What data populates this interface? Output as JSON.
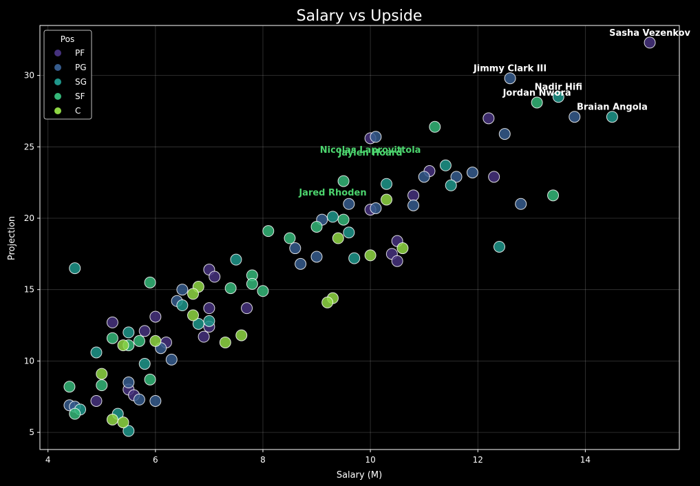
{
  "chart_data": {
    "type": "scatter",
    "title": "Salary vs Upside",
    "xlabel": "Salary (M)",
    "ylabel": "Projection",
    "xlim": [
      3.85,
      15.75
    ],
    "ylim": [
      3.8,
      33.5
    ],
    "xticks": [
      4,
      6,
      8,
      10,
      12,
      14
    ],
    "yticks": [
      5,
      10,
      15,
      20,
      25,
      30
    ],
    "grid": true,
    "legend": {
      "title": "Pos",
      "placement": "top-left",
      "entries": [
        {
          "label": "PF",
          "color": "#46327e"
        },
        {
          "label": "PG",
          "color": "#365c8d"
        },
        {
          "label": "SG",
          "color": "#1f968b"
        },
        {
          "label": "SF",
          "color": "#35b779"
        },
        {
          "label": "C",
          "color": "#8fd744"
        }
      ]
    },
    "series": [
      {
        "name": "PF",
        "color": "#46327e",
        "points": [
          [
            15.2,
            32.3
          ],
          [
            12.2,
            27.0
          ],
          [
            12.3,
            22.9
          ],
          [
            11.1,
            23.3
          ],
          [
            10.8,
            21.6
          ],
          [
            10.0,
            25.6
          ],
          [
            10.0,
            20.6
          ],
          [
            10.5,
            18.4
          ],
          [
            10.4,
            17.5
          ],
          [
            10.5,
            17.0
          ],
          [
            7.0,
            16.4
          ],
          [
            7.1,
            15.9
          ],
          [
            7.0,
            13.7
          ],
          [
            7.7,
            13.7
          ],
          [
            7.0,
            12.4
          ],
          [
            6.9,
            11.7
          ],
          [
            6.2,
            11.3
          ],
          [
            6.0,
            13.1
          ],
          [
            5.8,
            12.1
          ],
          [
            5.2,
            12.7
          ],
          [
            5.5,
            8.0
          ],
          [
            5.6,
            7.6
          ],
          [
            4.9,
            7.2
          ]
        ]
      },
      {
        "name": "PG",
        "color": "#365c8d",
        "points": [
          [
            12.6,
            29.8
          ],
          [
            13.8,
            27.1
          ],
          [
            12.5,
            25.9
          ],
          [
            11.9,
            23.2
          ],
          [
            11.6,
            22.9
          ],
          [
            11.0,
            22.9
          ],
          [
            12.8,
            21.0
          ],
          [
            10.8,
            20.9
          ],
          [
            10.1,
            25.7
          ],
          [
            10.1,
            20.7
          ],
          [
            9.6,
            21.0
          ],
          [
            9.1,
            19.9
          ],
          [
            8.6,
            17.9
          ],
          [
            8.7,
            16.8
          ],
          [
            9.0,
            17.3
          ],
          [
            6.5,
            15.0
          ],
          [
            6.4,
            14.2
          ],
          [
            6.3,
            10.1
          ],
          [
            6.1,
            10.9
          ],
          [
            5.5,
            8.5
          ],
          [
            5.7,
            7.3
          ],
          [
            6.0,
            7.2
          ],
          [
            4.4,
            6.9
          ],
          [
            4.5,
            6.8
          ]
        ]
      },
      {
        "name": "SG",
        "color": "#1f968b",
        "points": [
          [
            13.5,
            28.5
          ],
          [
            14.5,
            27.1
          ],
          [
            11.4,
            23.7
          ],
          [
            11.5,
            22.3
          ],
          [
            12.4,
            18.0
          ],
          [
            10.3,
            22.4
          ],
          [
            9.3,
            20.1
          ],
          [
            9.6,
            19.0
          ],
          [
            9.7,
            17.2
          ],
          [
            7.5,
            17.1
          ],
          [
            4.5,
            16.5
          ],
          [
            5.5,
            12.0
          ],
          [
            5.8,
            9.8
          ],
          [
            4.9,
            10.6
          ],
          [
            5.5,
            5.1
          ],
          [
            5.3,
            6.3
          ],
          [
            4.6,
            6.6
          ],
          [
            6.5,
            13.9
          ],
          [
            7.0,
            12.8
          ],
          [
            6.8,
            12.6
          ]
        ]
      },
      {
        "name": "SF",
        "color": "#35b779",
        "points": [
          [
            13.1,
            28.1
          ],
          [
            11.2,
            26.4
          ],
          [
            13.4,
            21.6
          ],
          [
            9.5,
            22.6
          ],
          [
            9.5,
            19.9
          ],
          [
            9.0,
            19.4
          ],
          [
            8.5,
            18.6
          ],
          [
            8.1,
            19.1
          ],
          [
            8.0,
            14.9
          ],
          [
            7.8,
            16.0
          ],
          [
            7.8,
            15.4
          ],
          [
            7.4,
            15.1
          ],
          [
            5.9,
            15.5
          ],
          [
            5.9,
            8.7
          ],
          [
            5.2,
            11.6
          ],
          [
            5.5,
            11.1
          ],
          [
            5.7,
            11.4
          ],
          [
            5.0,
            8.3
          ],
          [
            4.4,
            8.2
          ],
          [
            4.5,
            6.3
          ]
        ]
      },
      {
        "name": "C",
        "color": "#8fd744",
        "points": [
          [
            10.3,
            21.3
          ],
          [
            9.4,
            18.6
          ],
          [
            10.0,
            17.4
          ],
          [
            10.6,
            17.9
          ],
          [
            9.3,
            14.4
          ],
          [
            9.2,
            14.1
          ],
          [
            6.8,
            15.2
          ],
          [
            6.7,
            14.7
          ],
          [
            6.7,
            13.2
          ],
          [
            7.6,
            11.8
          ],
          [
            7.3,
            11.3
          ],
          [
            6.0,
            11.4
          ],
          [
            5.4,
            11.1
          ],
          [
            5.0,
            9.1
          ],
          [
            5.2,
            5.9
          ],
          [
            5.4,
            5.7
          ]
        ]
      }
    ],
    "annotations": [
      {
        "text": "Sasha Vezenkov",
        "x": 15.2,
        "y": 32.3,
        "color": "#ffffff"
      },
      {
        "text": "Jimmy Clark III",
        "x": 12.6,
        "y": 29.8,
        "color": "#ffffff"
      },
      {
        "text": "Nadir Hifi",
        "x": 13.5,
        "y": 28.5,
        "color": "#ffffff"
      },
      {
        "text": "Jordan Nwora",
        "x": 13.1,
        "y": 28.1,
        "color": "#ffffff"
      },
      {
        "text": "Braian Angola",
        "x": 14.5,
        "y": 27.1,
        "color": "#ffffff"
      },
      {
        "text": "Nicolas Laprovittola",
        "x": 10.0,
        "y": 24.1,
        "color": "#4cd56e"
      },
      {
        "text": "Jaylen Hoard",
        "x": 10.0,
        "y": 23.9,
        "color": "#4cd56e"
      },
      {
        "text": "Jared Rhoden",
        "x": 9.3,
        "y": 21.1,
        "color": "#4cd56e"
      }
    ]
  }
}
